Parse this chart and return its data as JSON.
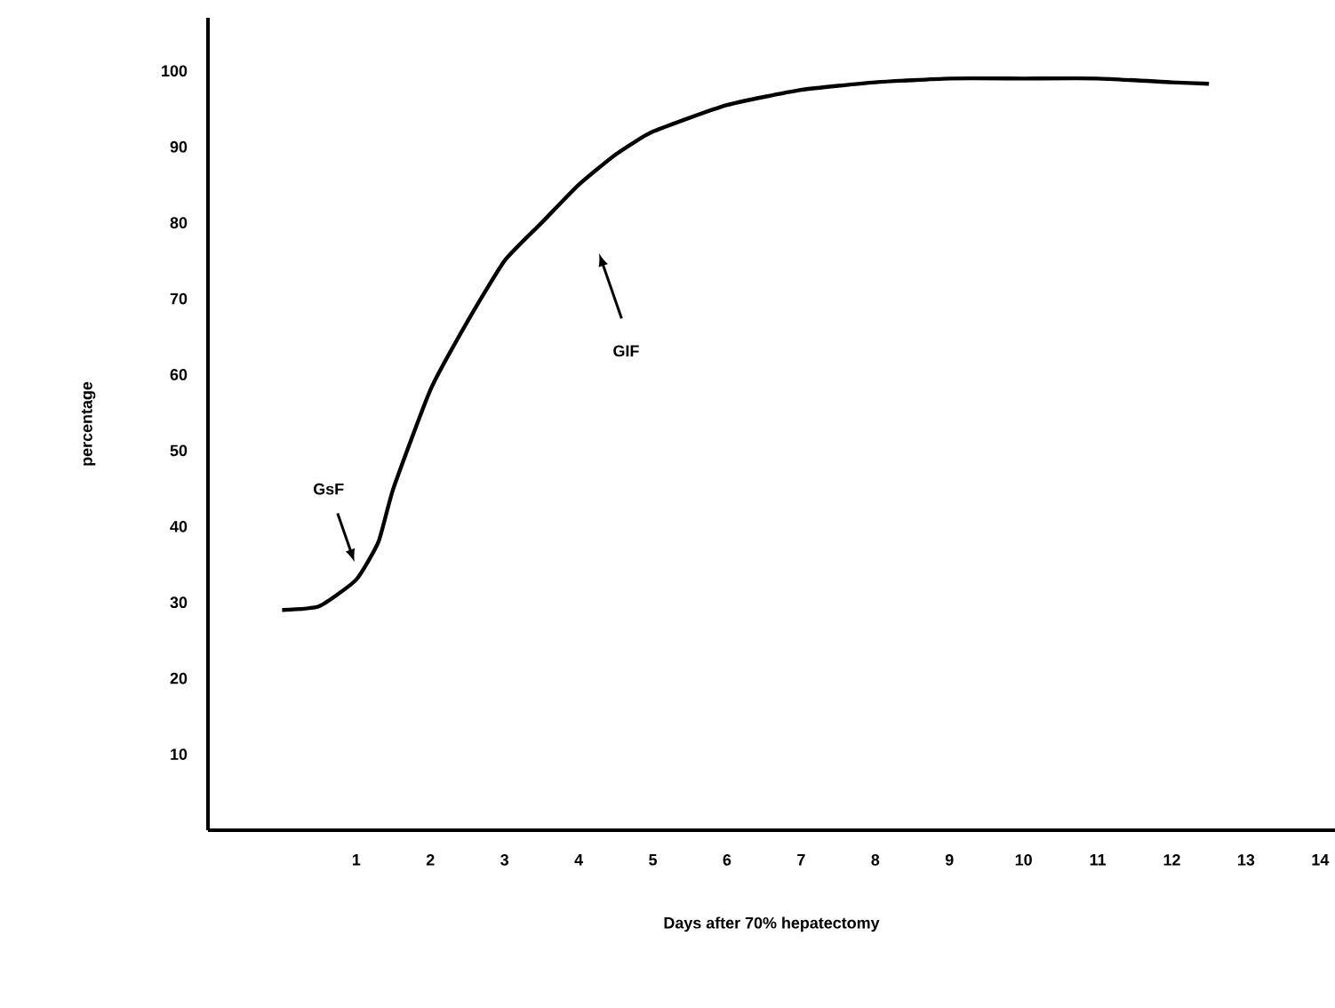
{
  "chart_data": {
    "type": "line",
    "xlabel": "Days after 70% hepatectomy",
    "ylabel": "percentage",
    "x": [
      0,
      0.5,
      1,
      1.3,
      1.5,
      2,
      2.5,
      3,
      3.5,
      4,
      4.5,
      5,
      6,
      7,
      8,
      9,
      10,
      11,
      12,
      12.5
    ],
    "values": [
      29,
      29.5,
      33,
      38,
      45,
      58,
      67,
      75,
      80,
      85,
      89,
      92,
      95.5,
      97.5,
      98.5,
      99,
      99,
      99,
      98.5,
      98.3
    ],
    "color": "#000000",
    "marker": "none",
    "line_style": "solid",
    "grid": false,
    "xlim": [
      -1,
      14.2
    ],
    "ylim": [
      0,
      107
    ],
    "xticks": [
      1,
      2,
      3,
      4,
      5,
      6,
      7,
      8,
      9,
      10,
      11,
      12,
      13,
      14
    ],
    "yticks": [
      10,
      20,
      30,
      40,
      50,
      60,
      70,
      80,
      90,
      100
    ],
    "annotations": [
      "GsF",
      "GIF"
    ]
  }
}
